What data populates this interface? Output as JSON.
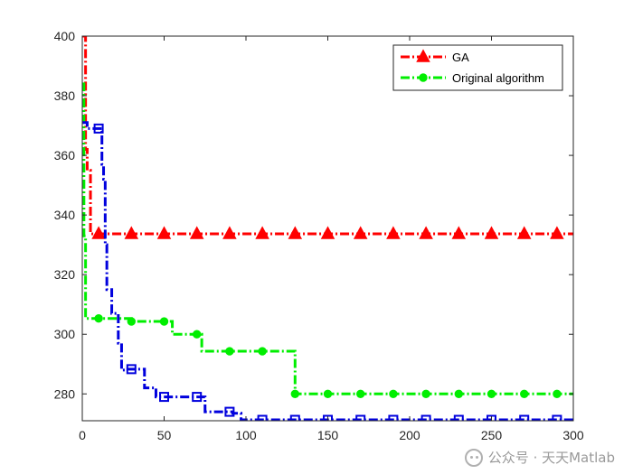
{
  "chart_data": {
    "type": "line",
    "title": "",
    "xlabel": "",
    "ylabel": "",
    "xlim": [
      0,
      300
    ],
    "ylim": [
      271,
      400
    ],
    "xticks": [
      0,
      50,
      100,
      150,
      200,
      250,
      300
    ],
    "yticks": [
      280,
      300,
      320,
      340,
      360,
      380,
      400
    ],
    "grid": false,
    "legend_position": "top-right",
    "series": [
      {
        "name": "GA",
        "color": "#ff0000",
        "marker": "triangle",
        "linestyle": "dash-dot",
        "x": [
          0,
          2,
          2,
          3,
          3,
          5,
          5,
          300
        ],
        "y": [
          400,
          400,
          362,
          362,
          355,
          355,
          333.7,
          333.7
        ],
        "marker_x": [
          10,
          30,
          50,
          70,
          90,
          110,
          130,
          150,
          170,
          190,
          210,
          230,
          250,
          270,
          290
        ]
      },
      {
        "name": "Original algorithm",
        "color": "#00ee00",
        "marker": "circle",
        "linestyle": "dash-dot",
        "x": [
          0,
          1,
          1,
          2,
          2,
          30,
          30,
          55,
          55,
          73,
          73,
          130,
          130,
          300
        ],
        "y": [
          384,
          384,
          333,
          333,
          305.3,
          305.3,
          304.3,
          304.3,
          300,
          300,
          294.3,
          294.3,
          280,
          280
        ],
        "marker_x": [
          10,
          30,
          50,
          70,
          90,
          110,
          130,
          150,
          170,
          190,
          210,
          230,
          250,
          270,
          290
        ]
      },
      {
        "name": "",
        "color": "#0000dd",
        "marker": "square",
        "linestyle": "dash-dot",
        "x": [
          0,
          3,
          3,
          12,
          12,
          13,
          13,
          14,
          14,
          15,
          15,
          18,
          18,
          22,
          22,
          24,
          24,
          27,
          27,
          38,
          38,
          45,
          45,
          65,
          65,
          75,
          75,
          92,
          92,
          97,
          97,
          300
        ],
        "y": [
          371,
          371,
          369,
          369,
          357,
          357,
          352,
          352,
          330,
          330,
          315,
          315,
          307,
          307,
          297,
          297,
          288,
          288,
          288.3,
          288.3,
          282,
          282,
          279,
          279,
          279,
          279,
          274,
          274,
          273.5,
          273.5,
          271.3,
          271.3
        ],
        "marker_x": [
          10,
          30,
          50,
          70,
          90,
          110,
          130,
          150,
          170,
          190,
          210,
          230,
          250,
          270,
          290
        ]
      }
    ]
  },
  "watermark": {
    "text": "公众号 · 天天Matlab"
  }
}
